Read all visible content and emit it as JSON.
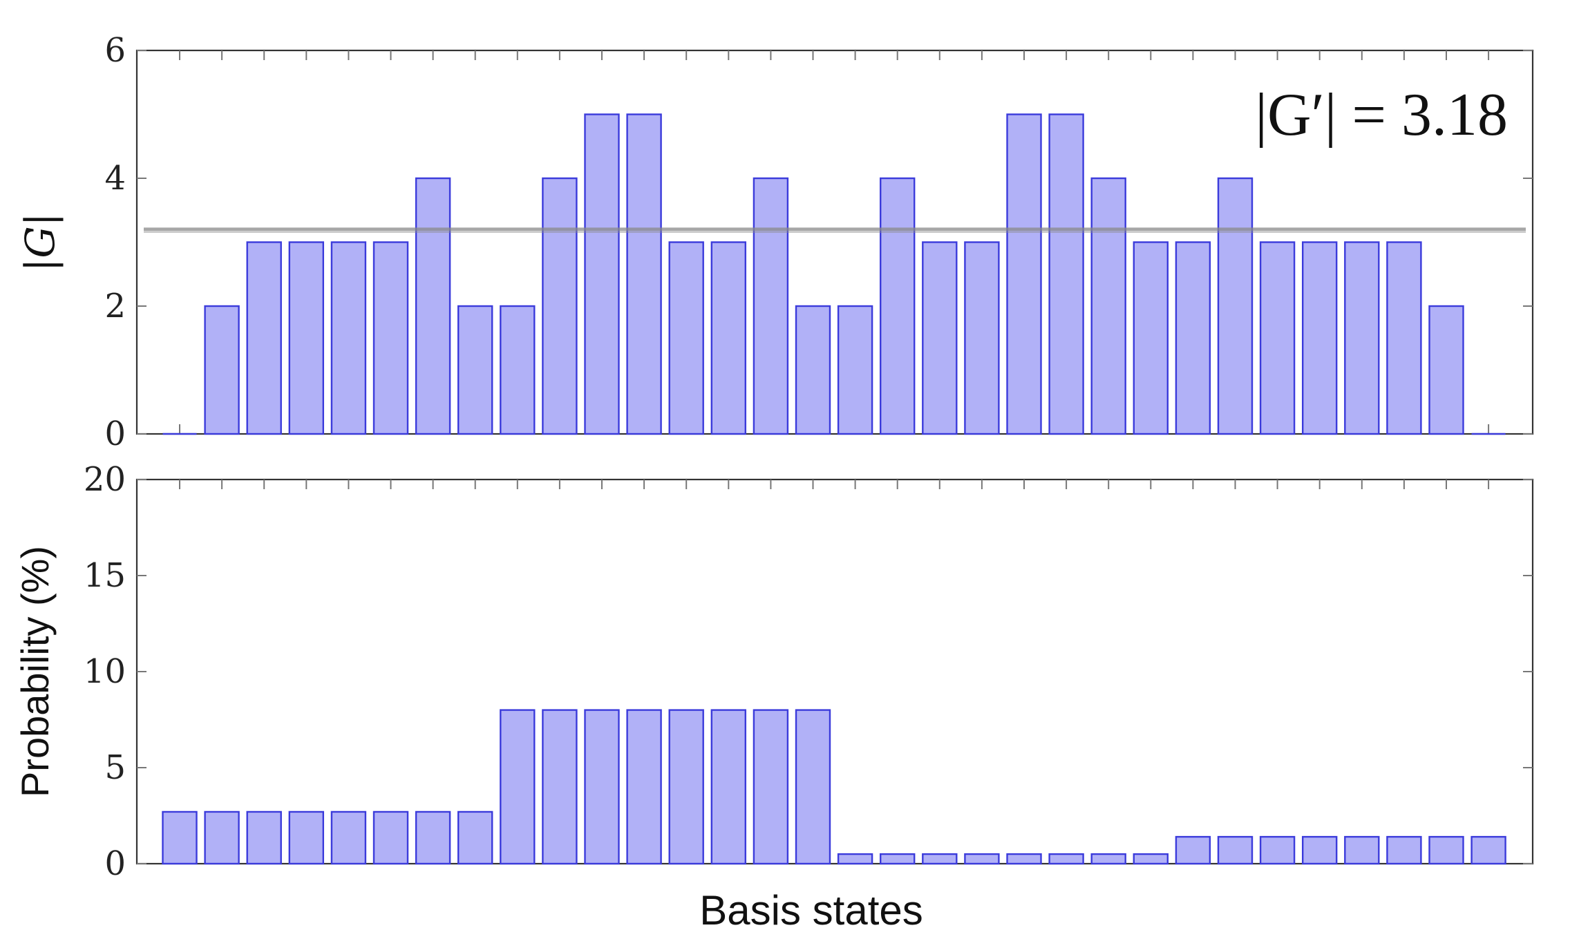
{
  "chart_data": [
    {
      "type": "bar",
      "ylabel": "|G|",
      "ylim": [
        0,
        6
      ],
      "yticks": [
        "0",
        "2",
        "4",
        "6"
      ],
      "annotation": "|G′| = 3.18",
      "reference_line": 3.18,
      "values": [
        0,
        2,
        3,
        3,
        3,
        3,
        4,
        2,
        2,
        4,
        5,
        5,
        3,
        3,
        4,
        2,
        2,
        4,
        3,
        3,
        5,
        5,
        4,
        3,
        3,
        4,
        3,
        3,
        3,
        3,
        2,
        0
      ],
      "bar_color": "#b1b1f7",
      "edge_color": "#3b3bdb",
      "line_color": "#8a8a8a",
      "grid": false
    },
    {
      "type": "bar",
      "xlabel": "Basis states",
      "ylabel": "Probability (%)",
      "ylim": [
        0,
        20
      ],
      "yticks": [
        "0",
        "5",
        "10",
        "15",
        "20"
      ],
      "values": [
        2.7,
        2.7,
        2.7,
        2.7,
        2.7,
        2.7,
        2.7,
        2.7,
        8,
        8,
        8,
        8,
        8,
        8,
        8,
        8,
        0.5,
        0.5,
        0.5,
        0.5,
        0.5,
        0.5,
        0.5,
        0.5,
        1.4,
        1.4,
        1.4,
        1.4,
        1.4,
        1.4,
        1.4,
        1.4
      ],
      "bar_color": "#b1b1f7",
      "edge_color": "#3b3bdb",
      "grid": false
    }
  ]
}
